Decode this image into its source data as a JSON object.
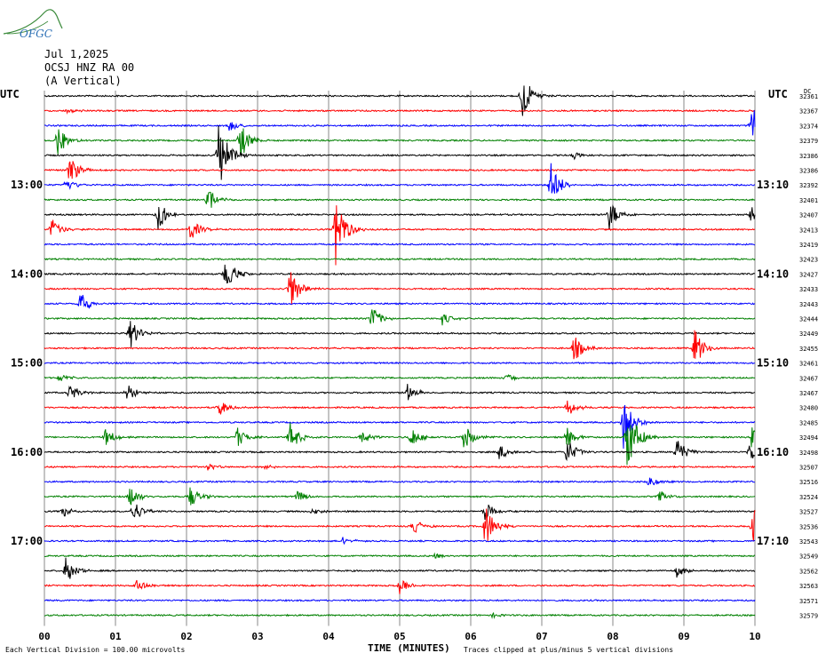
{
  "logo": {
    "text": "OFGC",
    "colors": {
      "text": "#2b6fb5",
      "swoosh": "#3a8a3a"
    }
  },
  "header": {
    "date": "Jul 1,2025",
    "station": "OCSJ HNZ RA 00",
    "component": "(A Vertical)"
  },
  "chart_data": {
    "type": "line",
    "title": "",
    "xlabel": "TIME (MINUTES)",
    "ylabel": "UTC",
    "right_label": "UTC",
    "right_col_header": "DC",
    "x_ticks": [
      "00",
      "01",
      "02",
      "03",
      "04",
      "05",
      "06",
      "07",
      "08",
      "09",
      "10"
    ],
    "xlim": [
      0,
      10
    ],
    "left_hour_labels": [
      {
        "row": 6,
        "label": "13:00"
      },
      {
        "row": 12,
        "label": "14:00"
      },
      {
        "row": 18,
        "label": "15:00"
      },
      {
        "row": 24,
        "label": "16:00"
      },
      {
        "row": 30,
        "label": "17:00"
      }
    ],
    "right_hour_labels": [
      {
        "row": 6,
        "label": "13:10"
      },
      {
        "row": 12,
        "label": "14:10"
      },
      {
        "row": 18,
        "label": "15:10"
      },
      {
        "row": 24,
        "label": "16:10"
      },
      {
        "row": 30,
        "label": "17:10"
      }
    ],
    "dc_offsets": [
      "32361",
      "32367",
      "32374",
      "32379",
      "32386",
      "32386",
      "32392",
      "32401",
      "32407",
      "32413",
      "32419",
      "32423",
      "32427",
      "32433",
      "32443",
      "32444",
      "32449",
      "32455",
      "32461",
      "32467",
      "32467",
      "32480",
      "32485",
      "32494",
      "32498",
      "32507",
      "32516",
      "32524",
      "32527",
      "32536",
      "32543",
      "32549",
      "32562",
      "32563",
      "32571",
      "32579"
    ],
    "trace_colors": [
      "#000000",
      "#ff0000",
      "#0000ff",
      "#008000"
    ],
    "events": [
      {
        "row": 0,
        "t": 6.72,
        "amp": 3.0
      },
      {
        "row": 1,
        "t": 0.3,
        "amp": 0.3
      },
      {
        "row": 2,
        "t": 9.95,
        "amp": 4.0
      },
      {
        "row": 2,
        "t": 2.6,
        "amp": 0.8
      },
      {
        "row": 3,
        "t": 0.18,
        "amp": 2.0
      },
      {
        "row": 3,
        "t": 2.75,
        "amp": 2.5
      },
      {
        "row": 4,
        "t": 2.45,
        "amp": 5.0
      },
      {
        "row": 4,
        "t": 7.45,
        "amp": 0.5
      },
      {
        "row": 5,
        "t": 0.35,
        "amp": 2.0
      },
      {
        "row": 6,
        "t": 0.3,
        "amp": 1.0
      },
      {
        "row": 6,
        "t": 7.12,
        "amp": 3.0
      },
      {
        "row": 7,
        "t": 2.3,
        "amp": 1.5
      },
      {
        "row": 8,
        "t": 1.6,
        "amp": 2.0
      },
      {
        "row": 8,
        "t": 7.95,
        "amp": 2.0
      },
      {
        "row": 8,
        "t": 9.95,
        "amp": 1.5
      },
      {
        "row": 9,
        "t": 0.1,
        "amp": 1.5
      },
      {
        "row": 9,
        "t": 2.05,
        "amp": 1.5
      },
      {
        "row": 9,
        "t": 4.1,
        "amp": 5.0
      },
      {
        "row": 12,
        "t": 2.55,
        "amp": 2.5
      },
      {
        "row": 13,
        "t": 3.45,
        "amp": 3.0
      },
      {
        "row": 14,
        "t": 0.5,
        "amp": 1.8
      },
      {
        "row": 15,
        "t": 4.6,
        "amp": 1.8
      },
      {
        "row": 15,
        "t": 5.6,
        "amp": 0.8
      },
      {
        "row": 16,
        "t": 1.2,
        "amp": 2.0
      },
      {
        "row": 17,
        "t": 7.45,
        "amp": 1.8
      },
      {
        "row": 17,
        "t": 9.15,
        "amp": 2.5
      },
      {
        "row": 19,
        "t": 0.2,
        "amp": 0.6
      },
      {
        "row": 19,
        "t": 6.5,
        "amp": 0.6
      },
      {
        "row": 20,
        "t": 0.35,
        "amp": 1.2
      },
      {
        "row": 20,
        "t": 1.15,
        "amp": 1.2
      },
      {
        "row": 20,
        "t": 5.1,
        "amp": 1.2
      },
      {
        "row": 21,
        "t": 2.45,
        "amp": 1.2
      },
      {
        "row": 21,
        "t": 7.35,
        "amp": 1.2
      },
      {
        "row": 22,
        "t": 8.15,
        "amp": 3.5
      },
      {
        "row": 23,
        "t": 0.85,
        "amp": 1.2
      },
      {
        "row": 23,
        "t": 2.7,
        "amp": 1.5
      },
      {
        "row": 23,
        "t": 3.45,
        "amp": 2.0
      },
      {
        "row": 23,
        "t": 4.45,
        "amp": 1.2
      },
      {
        "row": 23,
        "t": 5.15,
        "amp": 1.5
      },
      {
        "row": 23,
        "t": 5.9,
        "amp": 1.8
      },
      {
        "row": 23,
        "t": 7.35,
        "amp": 1.5
      },
      {
        "row": 23,
        "t": 8.2,
        "amp": 5.0
      },
      {
        "row": 23,
        "t": 9.95,
        "amp": 1.5
      },
      {
        "row": 24,
        "t": 6.4,
        "amp": 1.0
      },
      {
        "row": 24,
        "t": 7.35,
        "amp": 1.8
      },
      {
        "row": 24,
        "t": 8.9,
        "amp": 2.0
      },
      {
        "row": 24,
        "t": 9.92,
        "amp": 1.5
      },
      {
        "row": 25,
        "t": 2.3,
        "amp": 0.5
      },
      {
        "row": 25,
        "t": 3.1,
        "amp": 0.5
      },
      {
        "row": 26,
        "t": 8.5,
        "amp": 0.8
      },
      {
        "row": 27,
        "t": 1.2,
        "amp": 1.5
      },
      {
        "row": 27,
        "t": 2.05,
        "amp": 1.5
      },
      {
        "row": 27,
        "t": 3.55,
        "amp": 0.8
      },
      {
        "row": 27,
        "t": 8.65,
        "amp": 0.8
      },
      {
        "row": 28,
        "t": 0.25,
        "amp": 0.8
      },
      {
        "row": 28,
        "t": 1.25,
        "amp": 1.5
      },
      {
        "row": 28,
        "t": 3.75,
        "amp": 0.5
      },
      {
        "row": 28,
        "t": 6.2,
        "amp": 1.2
      },
      {
        "row": 29,
        "t": 5.2,
        "amp": 1.0
      },
      {
        "row": 29,
        "t": 6.2,
        "amp": 3.0
      },
      {
        "row": 29,
        "t": 9.97,
        "amp": 3.0
      },
      {
        "row": 30,
        "t": 4.2,
        "amp": 0.5
      },
      {
        "row": 31,
        "t": 5.5,
        "amp": 0.4
      },
      {
        "row": 32,
        "t": 0.3,
        "amp": 2.0
      },
      {
        "row": 32,
        "t": 8.9,
        "amp": 0.8
      },
      {
        "row": 33,
        "t": 1.3,
        "amp": 1.0
      },
      {
        "row": 33,
        "t": 5.0,
        "amp": 1.0
      },
      {
        "row": 35,
        "t": 6.3,
        "amp": 0.3
      }
    ]
  },
  "footer": {
    "scale_note": "Each Vertical Division =  100.00 microvolts",
    "clip_note": "Traces clipped at plus/minus 5 vertical divisions"
  }
}
